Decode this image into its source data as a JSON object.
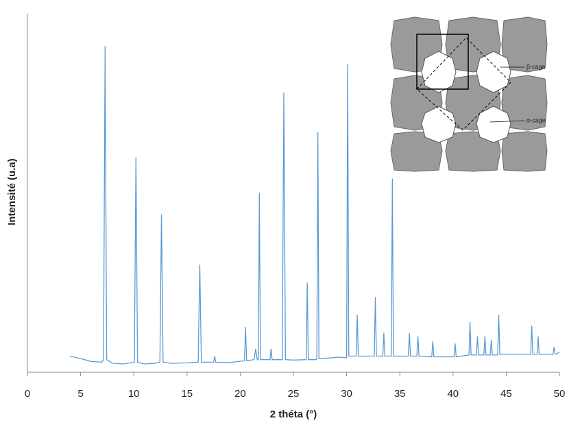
{
  "chart_data": {
    "type": "line",
    "xlabel": "2 théta (°)",
    "ylabel": "Intensité (u.a)",
    "xlim": [
      0,
      50
    ],
    "xticks": [
      0,
      5,
      10,
      15,
      20,
      25,
      30,
      35,
      40,
      45,
      50
    ],
    "ylim": [
      0,
      100
    ],
    "inset_labels": [
      "β-cage",
      "α-cage"
    ],
    "series": [
      {
        "color": "#5b9bd5",
        "x": [
          4.0,
          5.0,
          6.0,
          7.0,
          7.15,
          7.3,
          7.45,
          8.0,
          9.0,
          10.05,
          10.2,
          10.35,
          11.0,
          12.0,
          12.45,
          12.6,
          12.75,
          13.5,
          15.0,
          16.05,
          16.2,
          16.35,
          17.5,
          17.6,
          17.7,
          19.0,
          20.4,
          20.5,
          20.6,
          21.3,
          21.45,
          21.6,
          21.7,
          21.8,
          21.9,
          22.8,
          22.9,
          23.0,
          23.95,
          24.1,
          24.25,
          25.0,
          26.2,
          26.3,
          26.4,
          27.2,
          27.3,
          27.4,
          28.5,
          29.3,
          30.0,
          30.1,
          30.2,
          30.9,
          31.0,
          31.1,
          32.6,
          32.7,
          32.8,
          33.4,
          33.5,
          33.6,
          34.2,
          34.3,
          34.4,
          35.8,
          35.9,
          36.0,
          36.6,
          36.7,
          36.8,
          38.0,
          38.1,
          38.2,
          40.1,
          40.2,
          40.3,
          41.5,
          41.6,
          41.7,
          42.2,
          42.3,
          42.4,
          42.9,
          43.0,
          43.1,
          43.5,
          43.6,
          43.7,
          44.2,
          44.3,
          44.4,
          46.0,
          47.3,
          47.4,
          47.5,
          47.9,
          48.0,
          48.1,
          49.4,
          49.5,
          49.6,
          50.0
        ],
        "values": [
          4.5,
          3.8,
          3.0,
          2.8,
          3.5,
          91,
          3.5,
          2.5,
          2.3,
          2.8,
          60,
          2.8,
          2.3,
          2.5,
          2.8,
          44,
          2.8,
          2.5,
          2.6,
          2.8,
          30,
          2.8,
          2.8,
          4.5,
          2.8,
          2.7,
          3.2,
          12.6,
          3.2,
          3.5,
          6.5,
          3.5,
          3.5,
          50,
          3.5,
          3.5,
          6.5,
          3.5,
          3.5,
          78,
          3.5,
          3.4,
          3.5,
          25,
          3.5,
          3.5,
          67,
          3.8,
          4,
          4.2,
          4,
          86,
          4.5,
          4.5,
          16,
          4.5,
          4.5,
          21,
          4.5,
          4.5,
          11,
          4.5,
          4.5,
          54,
          4.5,
          4.5,
          11,
          4.5,
          4.5,
          10,
          4.5,
          4.3,
          8.6,
          4.3,
          4.3,
          8,
          4.3,
          4.8,
          14,
          4.8,
          4.8,
          10,
          4.8,
          4.8,
          10,
          4.8,
          4.8,
          9,
          4.8,
          4.8,
          16,
          5,
          5,
          5,
          13,
          5,
          5,
          10,
          5,
          5,
          7,
          5,
          5.5
        ]
      }
    ]
  }
}
